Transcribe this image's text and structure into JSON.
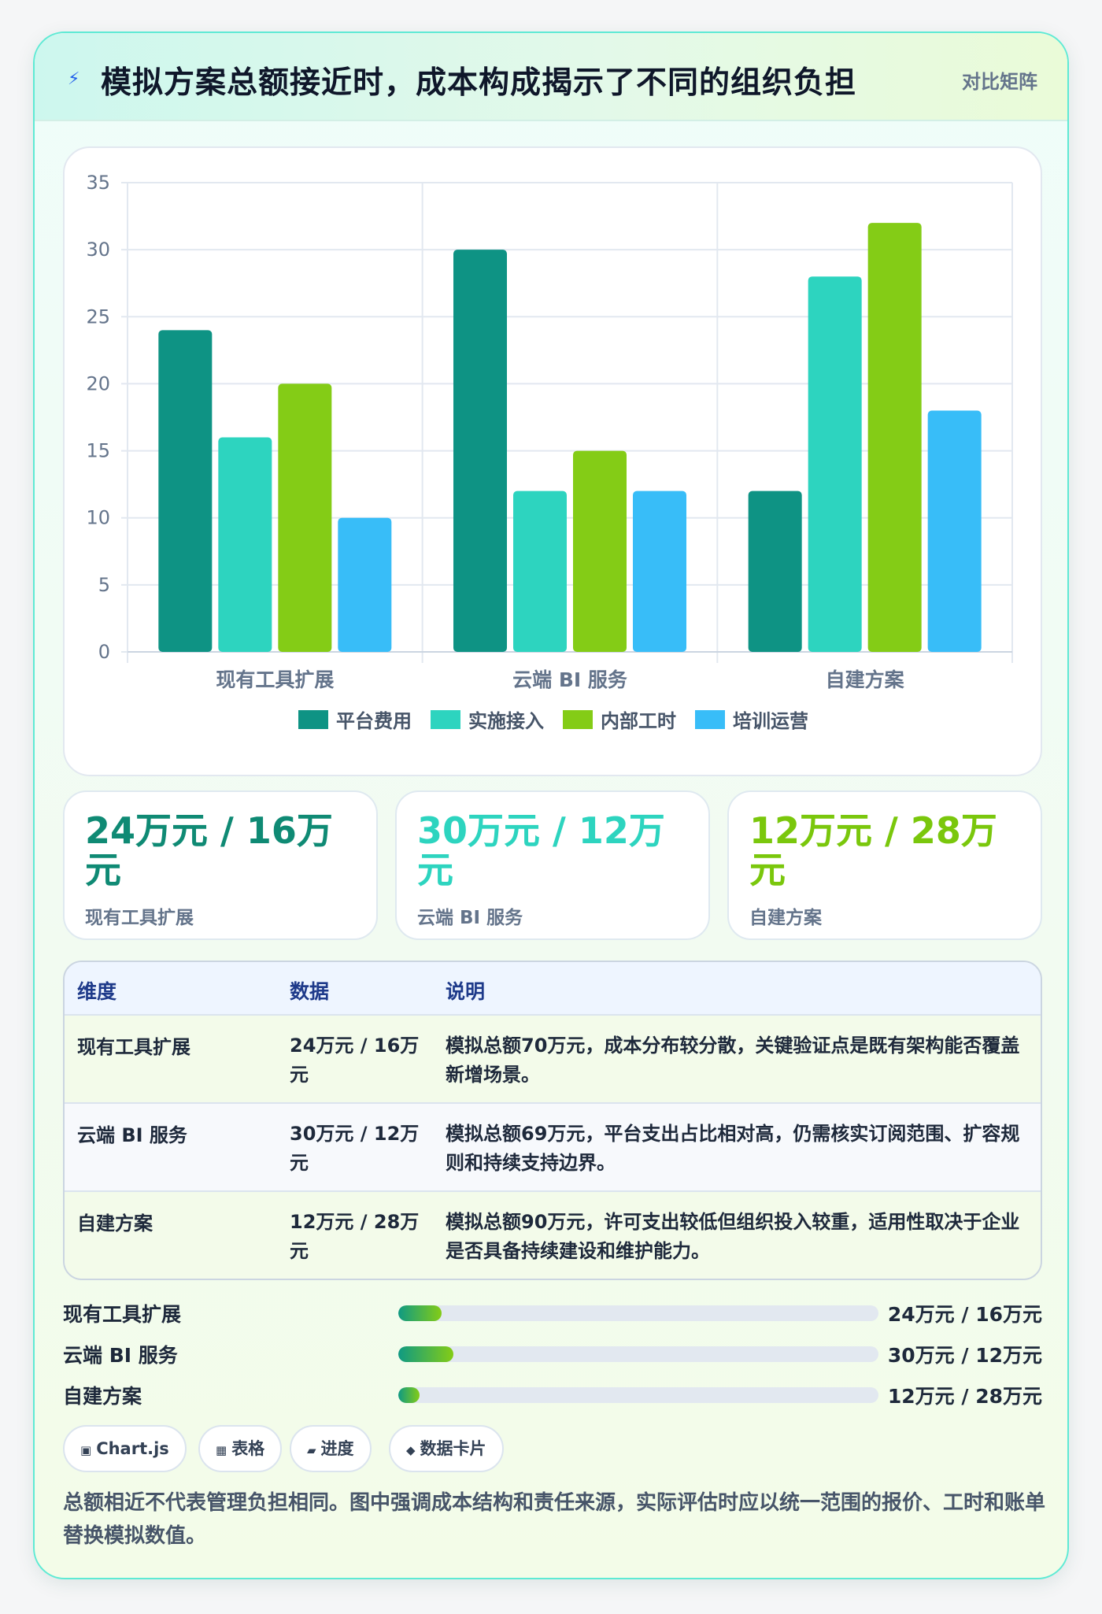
{
  "header": {
    "icon": "lightning-icon",
    "title": "模拟方案总额接近时，成本构成揭示了不同的组织负担",
    "badge": "对比矩阵"
  },
  "chart_data": {
    "type": "bar",
    "categories": [
      "现有工具扩展",
      "云端 BI 服务",
      "自建方案"
    ],
    "series": [
      {
        "name": "平台费用",
        "color": "#0e9384",
        "values": [
          24,
          30,
          12
        ]
      },
      {
        "name": "实施接入",
        "color": "#2dd4bf",
        "values": [
          16,
          12,
          28
        ]
      },
      {
        "name": "内部工时",
        "color": "#84cc16",
        "values": [
          20,
          15,
          32
        ]
      },
      {
        "name": "培训运营",
        "color": "#38bdf8",
        "values": [
          10,
          12,
          18
        ]
      }
    ],
    "ylim": [
      0,
      35
    ],
    "yticks": [
      "0",
      "5",
      "10",
      "15",
      "20",
      "25",
      "30",
      "35"
    ],
    "grid": true,
    "legend_position": "bottom"
  },
  "stats": [
    {
      "value": "24万元 / 16万元",
      "label": "现有工具扩展",
      "color": "#0f8a74"
    },
    {
      "value": "30万元 / 12万元",
      "label": "云端 BI 服务",
      "color": "#2dd4bf"
    },
    {
      "value": "12万元 / 28万元",
      "label": "自建方案",
      "color": "#7ac70c"
    }
  ],
  "table": {
    "headers": [
      "维度",
      "数据",
      "说明"
    ],
    "rows": [
      {
        "dim": "现有工具扩展",
        "data": "24万元 / 16万元",
        "desc": "模拟总额70万元，成本分布较分散，关键验证点是既有架构能否覆盖新增场景。"
      },
      {
        "dim": "云端 BI 服务",
        "data": "30万元 / 12万元",
        "desc": "模拟总额69万元，平台支出占比相对高，仍需核实订阅范围、扩容规则和持续支持边界。"
      },
      {
        "dim": "自建方案",
        "data": "12万元 / 28万元",
        "desc": "模拟总额90万元，许可支出较低但组织投入较重，适用性取决于企业是否具备持续建设和维护能力。"
      }
    ]
  },
  "progress": [
    {
      "label": "现有工具扩展",
      "value": "24万元 / 16万元",
      "fraction": 0.09
    },
    {
      "label": "云端 BI 服务",
      "value": "30万元 / 12万元",
      "fraction": 0.115
    },
    {
      "label": "自建方案",
      "value": "12万元 / 28万元",
      "fraction": 0.045
    }
  ],
  "chips": [
    {
      "icon": "▣",
      "label": "Chart.js"
    },
    {
      "icon": "▦",
      "label": "表格"
    },
    {
      "icon": "▰",
      "label": "进度"
    },
    {
      "icon": "◆",
      "label": "数据卡片"
    }
  ],
  "note": "总额相近不代表管理负担相同。图中强调成本结构和责任来源，实际评估时应以统一范围的报价、工时和账单替换模拟数值。"
}
